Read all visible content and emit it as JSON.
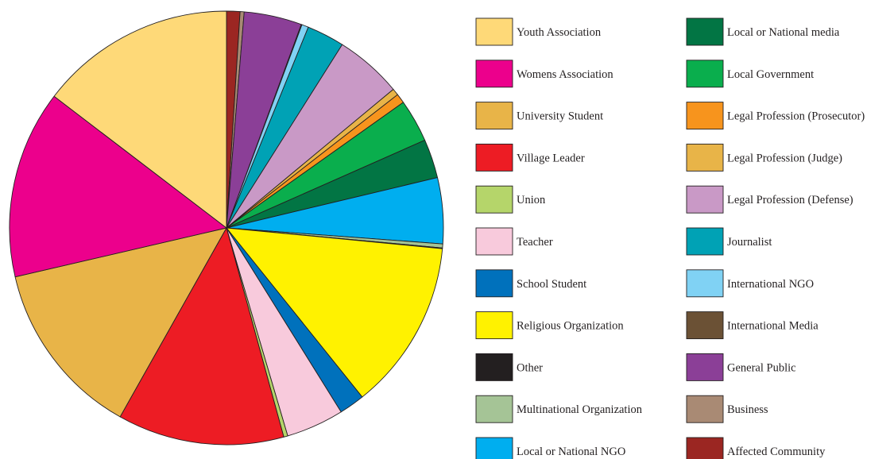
{
  "chart_data": {
    "type": "pie",
    "title": "",
    "slices": [
      {
        "label": "Affected Community",
        "value": 1.0,
        "color": "#9b2622"
      },
      {
        "label": "Business",
        "value": 0.3,
        "color": "#a98a74"
      },
      {
        "label": "General Public",
        "value": 4.3,
        "color": "#8b3f97"
      },
      {
        "label": "International Media",
        "value": 0.05,
        "color": "#6b5135"
      },
      {
        "label": "International NGO",
        "value": 0.5,
        "color": "#80d2f4"
      },
      {
        "label": "Journalist",
        "value": 2.8,
        "color": "#00a2b5"
      },
      {
        "label": "Legal Profession (Defense)",
        "value": 5.0,
        "color": "#c999c6"
      },
      {
        "label": "Legal Profession (Judge)",
        "value": 0.5,
        "color": "#e8b448"
      },
      {
        "label": "Legal Profession (Prosecutor)",
        "value": 0.7,
        "color": "#f7941d"
      },
      {
        "label": "Local Government",
        "value": 3.2,
        "color": "#0aae4d"
      },
      {
        "label": "Local or National media",
        "value": 2.9,
        "color": "#027544"
      },
      {
        "label": "Local or National NGO",
        "value": 4.9,
        "color": "#00aeef"
      },
      {
        "label": "Multinational Organization",
        "value": 0.3,
        "color": "#a5c496"
      },
      {
        "label": "Other",
        "value": 0.05,
        "color": "#231f20"
      },
      {
        "label": "Religious Organization",
        "value": 12.7,
        "color": "#fff200"
      },
      {
        "label": "School Student",
        "value": 1.9,
        "color": "#0071bc"
      },
      {
        "label": "Teacher",
        "value": 4.3,
        "color": "#f8cadc"
      },
      {
        "label": "Union",
        "value": 0.3,
        "color": "#b5d56a"
      },
      {
        "label": "Village Leader",
        "value": 12.4,
        "color": "#ed1c24"
      },
      {
        "label": "University Student",
        "value": 13.2,
        "color": "#e8b448"
      },
      {
        "label": "Womens Association",
        "value": 14.0,
        "color": "#ec008c"
      },
      {
        "label": "Youth Association",
        "value": 14.6,
        "color": "#fed978"
      }
    ],
    "legend": {
      "placement": "right",
      "columns": [
        [
          "Youth Association",
          "Womens Association",
          "University Student",
          "Village Leader",
          "Union",
          "Teacher",
          "School Student",
          "Religious Organization",
          "Other",
          "Multinational Organization",
          "Local or National NGO"
        ],
        [
          "Local or National media",
          "Local Government",
          "Legal Profession (Prosecutor)",
          "Legal Profession (Judge)",
          "Legal Profession (Defense)",
          "Journalist",
          "International NGO",
          "International Media",
          "General Public",
          "Business",
          "Affected Community"
        ]
      ]
    }
  }
}
